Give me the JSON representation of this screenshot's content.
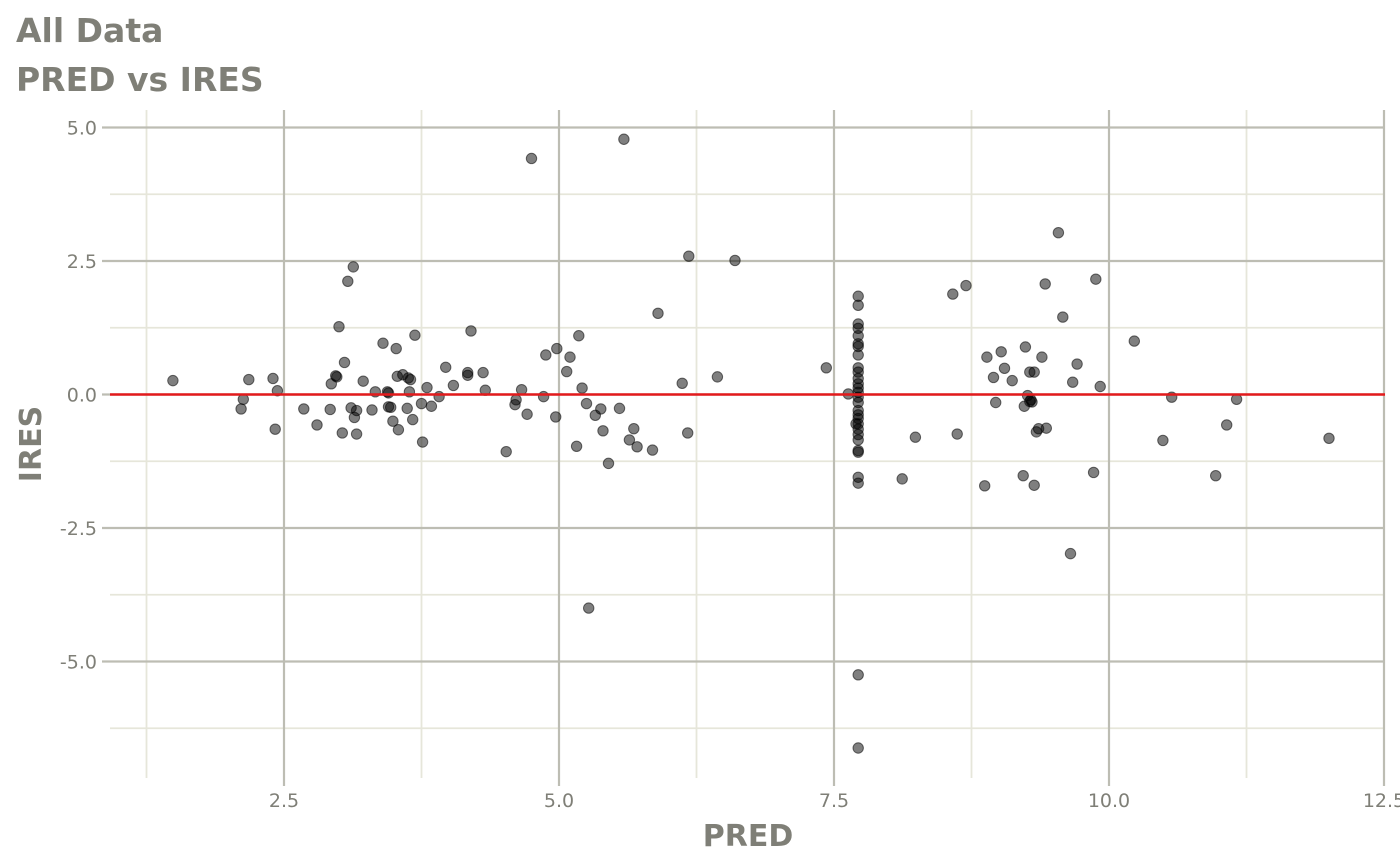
{
  "chart_data": {
    "type": "scatter",
    "title": "All Data",
    "subtitle": "PRED vs IRES",
    "xlabel": "PRED",
    "ylabel": "IRES",
    "xlim": [
      1.1,
      12.5
    ],
    "ylim": [
      -7.2,
      5.3
    ],
    "x_ticks": [
      2.5,
      5.0,
      7.5,
      10.0,
      12.5
    ],
    "x_tick_labels": [
      "2.5",
      "5.0",
      "7.5",
      "10.0",
      "12.5"
    ],
    "y_ticks": [
      5.0,
      2.5,
      0.0,
      -2.5,
      -5.0
    ],
    "y_tick_labels": [
      "5.0",
      "2.5",
      "0.0",
      "-2.5",
      "-5.0"
    ],
    "x_minor_ticks": [
      1.25,
      3.75,
      6.25,
      8.75,
      11.25
    ],
    "y_minor_ticks": [
      3.75,
      1.25,
      -1.25,
      -3.75,
      -6.25
    ],
    "reference_line": {
      "y": 0.0,
      "color": "#e31a1c"
    },
    "grid": true,
    "point_color": "#000000",
    "major_grid_color": "#bdbdb3",
    "minor_grid_color": "#e6e6da",
    "points": [
      [
        1.49,
        0.26
      ],
      [
        2.11,
        -0.27
      ],
      [
        2.13,
        -0.09
      ],
      [
        2.18,
        0.28
      ],
      [
        2.4,
        0.3
      ],
      [
        2.42,
        -0.65
      ],
      [
        2.44,
        0.07
      ],
      [
        2.68,
        -0.27
      ],
      [
        2.8,
        -0.57
      ],
      [
        2.92,
        -0.28
      ],
      [
        2.93,
        0.2
      ],
      [
        2.97,
        0.35
      ],
      [
        2.98,
        0.33
      ],
      [
        3.0,
        1.27
      ],
      [
        3.03,
        -0.72
      ],
      [
        3.05,
        0.6
      ],
      [
        3.08,
        2.12
      ],
      [
        3.11,
        -0.25
      ],
      [
        3.13,
        2.39
      ],
      [
        3.14,
        -0.43
      ],
      [
        3.16,
        -0.3
      ],
      [
        3.16,
        -0.74
      ],
      [
        3.22,
        0.25
      ],
      [
        3.3,
        -0.29
      ],
      [
        3.33,
        0.05
      ],
      [
        3.4,
        0.96
      ],
      [
        3.44,
        0.05
      ],
      [
        3.45,
        -0.23
      ],
      [
        3.45,
        0.03
      ],
      [
        3.47,
        -0.24
      ],
      [
        3.49,
        -0.5
      ],
      [
        3.52,
        0.86
      ],
      [
        3.53,
        0.34
      ],
      [
        3.54,
        -0.66
      ],
      [
        3.58,
        0.37
      ],
      [
        3.62,
        -0.26
      ],
      [
        3.63,
        0.31
      ],
      [
        3.64,
        0.05
      ],
      [
        3.65,
        0.28
      ],
      [
        3.67,
        -0.47
      ],
      [
        3.69,
        1.11
      ],
      [
        3.75,
        -0.17
      ],
      [
        3.76,
        -0.89
      ],
      [
        3.8,
        0.13
      ],
      [
        3.84,
        -0.22
      ],
      [
        3.91,
        -0.04
      ],
      [
        3.97,
        0.51
      ],
      [
        4.04,
        0.17
      ],
      [
        4.17,
        0.41
      ],
      [
        4.17,
        0.36
      ],
      [
        4.2,
        1.19
      ],
      [
        4.31,
        0.41
      ],
      [
        4.33,
        0.08
      ],
      [
        4.52,
        -1.07
      ],
      [
        4.6,
        -0.19
      ],
      [
        4.61,
        -0.1
      ],
      [
        4.66,
        0.09
      ],
      [
        4.71,
        -0.37
      ],
      [
        4.75,
        4.42
      ],
      [
        4.86,
        -0.04
      ],
      [
        4.88,
        0.74
      ],
      [
        4.97,
        -0.42
      ],
      [
        4.98,
        0.86
      ],
      [
        5.07,
        0.43
      ],
      [
        5.1,
        0.7
      ],
      [
        5.16,
        -0.97
      ],
      [
        5.18,
        1.1
      ],
      [
        5.21,
        0.12
      ],
      [
        5.25,
        -0.17
      ],
      [
        5.27,
        -4.0
      ],
      [
        5.33,
        -0.39
      ],
      [
        5.38,
        -0.27
      ],
      [
        5.4,
        -0.68
      ],
      [
        5.45,
        -1.29
      ],
      [
        5.55,
        -0.26
      ],
      [
        5.59,
        4.78
      ],
      [
        5.64,
        -0.85
      ],
      [
        5.68,
        -0.64
      ],
      [
        5.71,
        -0.98
      ],
      [
        5.85,
        -1.04
      ],
      [
        5.9,
        1.52
      ],
      [
        6.12,
        0.21
      ],
      [
        6.17,
        -0.72
      ],
      [
        6.18,
        2.59
      ],
      [
        6.44,
        0.33
      ],
      [
        6.6,
        2.51
      ],
      [
        7.43,
        0.5
      ],
      [
        7.63,
        0.01
      ],
      [
        7.7,
        -0.55
      ],
      [
        7.72,
        1.84
      ],
      [
        7.72,
        1.67
      ],
      [
        7.72,
        1.32
      ],
      [
        7.72,
        1.24
      ],
      [
        7.72,
        1.1
      ],
      [
        7.72,
        0.95
      ],
      [
        7.72,
        0.9
      ],
      [
        7.72,
        0.74
      ],
      [
        7.72,
        0.5
      ],
      [
        7.72,
        0.42
      ],
      [
        7.72,
        0.3
      ],
      [
        7.72,
        0.2
      ],
      [
        7.72,
        0.12
      ],
      [
        7.72,
        0.04
      ],
      [
        7.72,
        -0.05
      ],
      [
        7.72,
        -0.15
      ],
      [
        7.72,
        -0.3
      ],
      [
        7.72,
        -0.38
      ],
      [
        7.72,
        -0.45
      ],
      [
        7.72,
        -0.55
      ],
      [
        7.72,
        -0.65
      ],
      [
        7.72,
        -0.75
      ],
      [
        7.72,
        -0.85
      ],
      [
        7.72,
        -1.05
      ],
      [
        7.72,
        -1.08
      ],
      [
        7.72,
        -1.55
      ],
      [
        7.72,
        -1.66
      ],
      [
        7.72,
        -5.25
      ],
      [
        7.72,
        -6.62
      ],
      [
        8.12,
        -1.58
      ],
      [
        8.24,
        -0.8
      ],
      [
        8.58,
        1.88
      ],
      [
        8.62,
        -0.74
      ],
      [
        8.7,
        2.04
      ],
      [
        8.87,
        -1.71
      ],
      [
        8.89,
        0.7
      ],
      [
        8.95,
        0.32
      ],
      [
        8.97,
        -0.15
      ],
      [
        9.02,
        0.8
      ],
      [
        9.05,
        0.49
      ],
      [
        9.12,
        0.26
      ],
      [
        9.22,
        -1.52
      ],
      [
        9.23,
        -0.22
      ],
      [
        9.24,
        0.89
      ],
      [
        9.26,
        -0.02
      ],
      [
        9.28,
        0.42
      ],
      [
        9.28,
        -0.13
      ],
      [
        9.29,
        -0.1
      ],
      [
        9.3,
        -0.14
      ],
      [
        9.32,
        -1.7
      ],
      [
        9.32,
        0.42
      ],
      [
        9.34,
        -0.7
      ],
      [
        9.36,
        -0.64
      ],
      [
        9.39,
        0.7
      ],
      [
        9.42,
        2.07
      ],
      [
        9.43,
        -0.63
      ],
      [
        9.54,
        3.03
      ],
      [
        9.58,
        1.45
      ],
      [
        9.65,
        -2.98
      ],
      [
        9.67,
        0.23
      ],
      [
        9.71,
        0.57
      ],
      [
        9.86,
        -1.46
      ],
      [
        9.88,
        2.16
      ],
      [
        9.92,
        0.15
      ],
      [
        10.23,
        1.0
      ],
      [
        10.49,
        -0.86
      ],
      [
        10.57,
        -0.05
      ],
      [
        10.97,
        -1.52
      ],
      [
        11.07,
        -0.57
      ],
      [
        11.16,
        -0.09
      ],
      [
        12.0,
        -0.82
      ]
    ]
  }
}
